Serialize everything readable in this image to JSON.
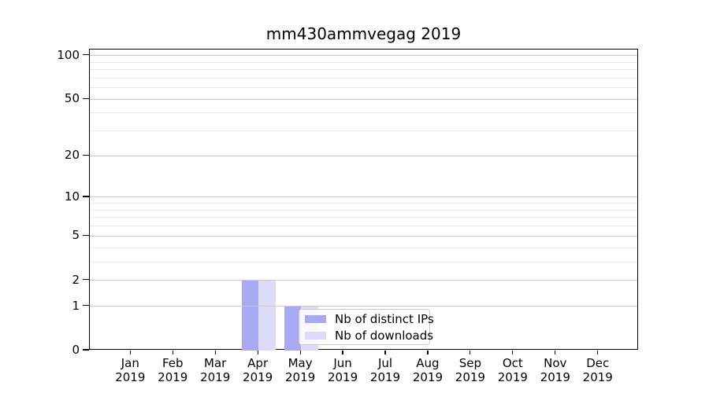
{
  "chart_data": {
    "type": "bar",
    "title": "mm430ammvegag 2019",
    "categories": [
      "Jan",
      "Feb",
      "Mar",
      "Apr",
      "May",
      "Jun",
      "Jul",
      "Aug",
      "Sep",
      "Oct",
      "Nov",
      "Dec"
    ],
    "x_tick_year": "2019",
    "series": [
      {
        "name": "Nb of distinct IPs",
        "color": "#a9a9f3",
        "values": [
          0,
          0,
          0,
          2,
          1,
          0,
          0,
          0,
          0,
          0,
          0,
          0
        ]
      },
      {
        "name": "Nb of downloads",
        "color": "#dcdcf8",
        "values": [
          0,
          0,
          0,
          2,
          1,
          0,
          0,
          0,
          0,
          0,
          0,
          0
        ]
      }
    ],
    "yscale": "log1p",
    "ylim": [
      0,
      110
    ],
    "y_major_ticks": [
      0,
      1,
      2,
      5,
      10,
      20,
      50,
      100
    ],
    "y_minor_gridlines": [
      3,
      4,
      6,
      7,
      8,
      9,
      30,
      40,
      60,
      70,
      80,
      90
    ],
    "grid": true,
    "legend": {
      "location": "inside-bottom-center"
    },
    "colors": {
      "background": "#ffffff",
      "spine": "#000000",
      "text": "#000000",
      "major_grid": "#c9c9c9",
      "minor_grid": "#e9e9e9",
      "legend_border": "#cccccc"
    }
  }
}
